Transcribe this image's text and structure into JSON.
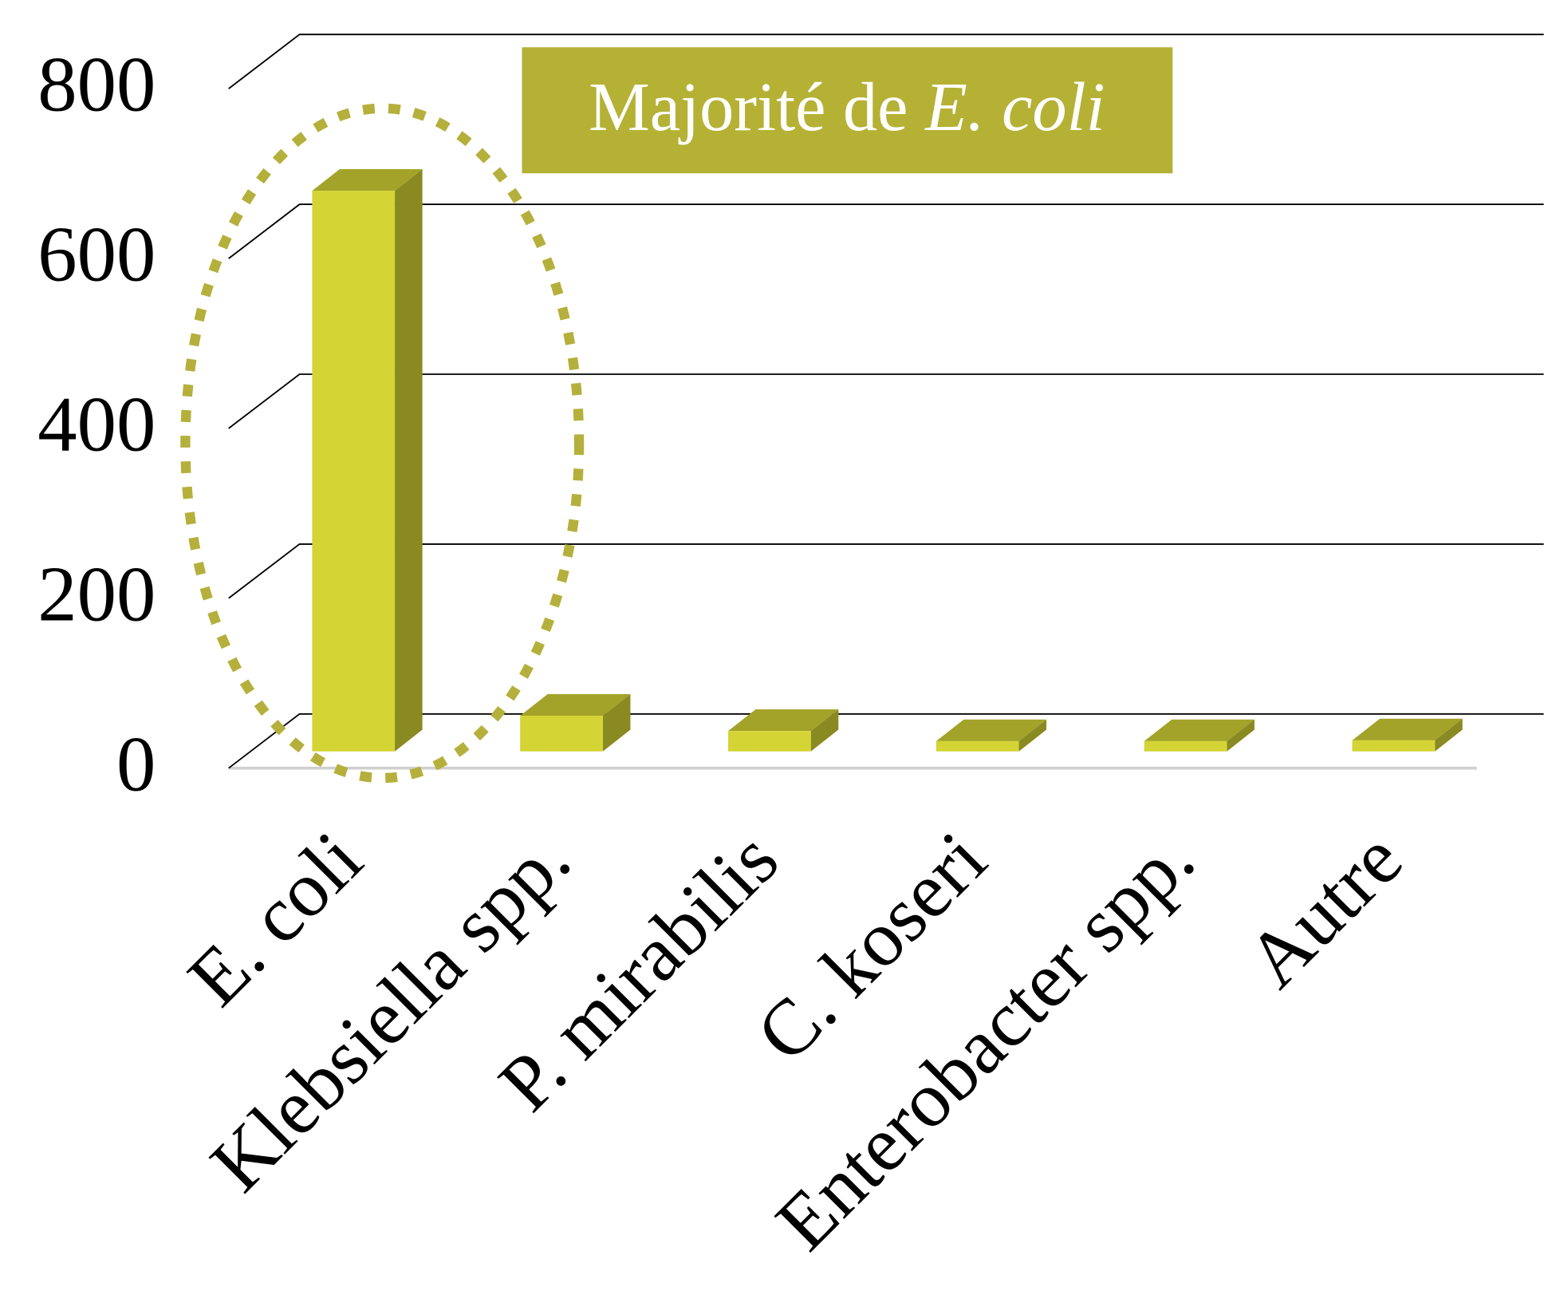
{
  "chart_data": {
    "type": "bar3d",
    "categories": [
      "E. coli",
      "Klebsiella spp.",
      "P. mirabilis",
      "C. koseri",
      "Enterobacter spp.",
      "Autre"
    ],
    "values": [
      660,
      42,
      24,
      12,
      12,
      13
    ],
    "colors": {
      "front": "#d4d435",
      "side": "#8a8a22",
      "top": "#a3a32a"
    },
    "ylim": [
      0,
      800
    ],
    "yticks": [
      0,
      200,
      400,
      600,
      800
    ],
    "grid": true,
    "annotation": {
      "text": "Majorité de",
      "italic": "E. coli",
      "color": "#b5b135"
    },
    "highlight": "E. coli"
  }
}
